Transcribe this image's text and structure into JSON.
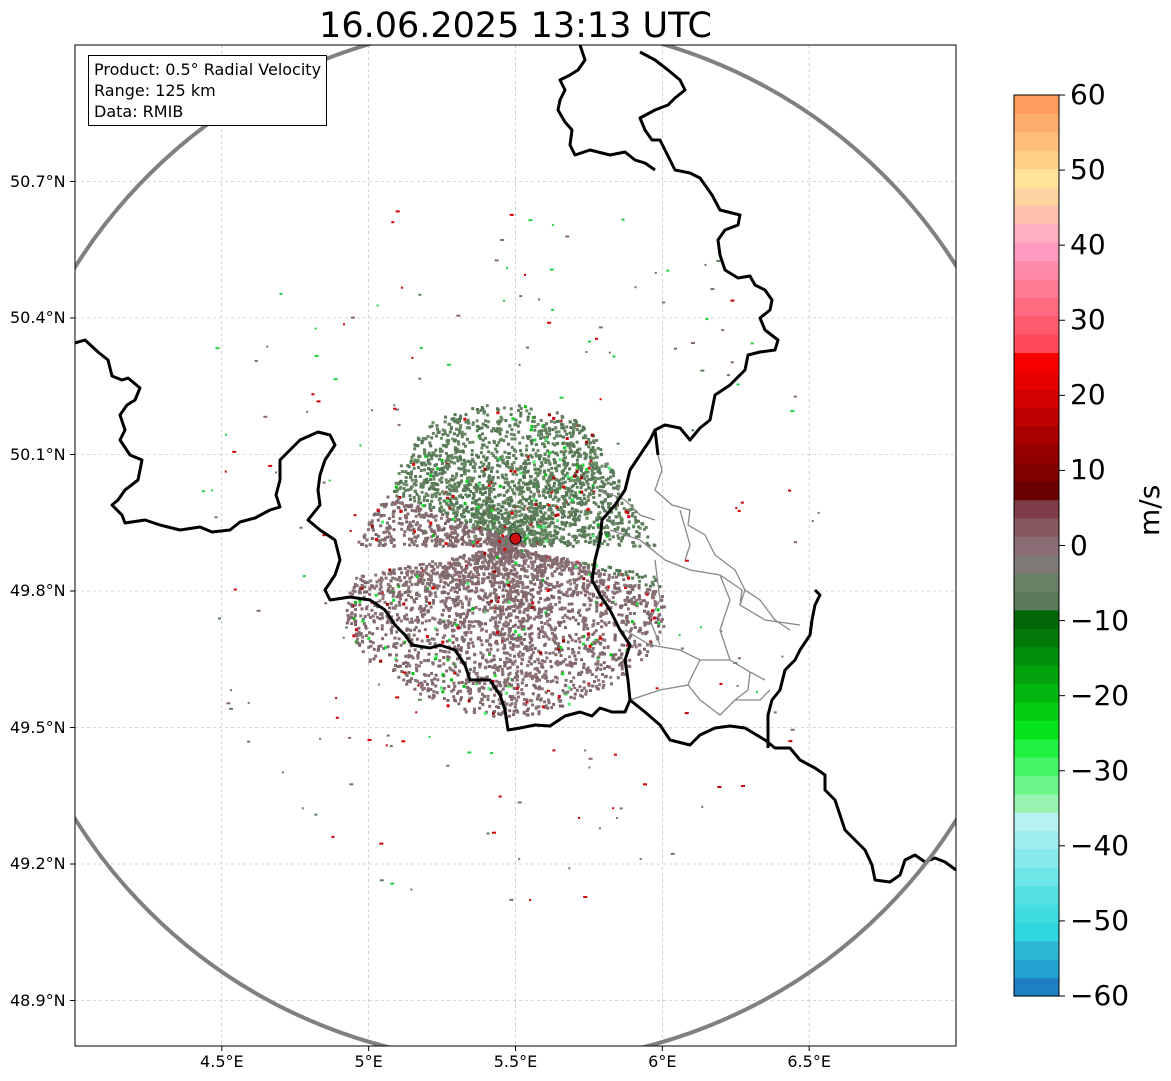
{
  "title": "16.06.2025 13:13 UTC",
  "info": {
    "product": "Product: 0.5° Radial Velocity",
    "range": "Range: 125 km",
    "data_source": "Data: RMIB"
  },
  "axes": {
    "lat_ticks": [
      "50.7°N",
      "50.4°N",
      "50.1°N",
      "49.8°N",
      "49.5°N",
      "49.2°N",
      "48.9°N"
    ],
    "lon_ticks": [
      "4.5°E",
      "5°E",
      "5.5°E",
      "6°E",
      "6.5°E"
    ],
    "lat_values": [
      50.7,
      50.4,
      50.1,
      49.8,
      49.5,
      49.2,
      48.9
    ],
    "lon_values": [
      4.5,
      5.0,
      5.5,
      6.0,
      6.5
    ],
    "lon_range": [
      4.0,
      7.0
    ],
    "lat_range": [
      48.8,
      51.0
    ],
    "grid": true
  },
  "radar": {
    "site_lon": 5.5,
    "site_lat": 49.915,
    "range_km": 125,
    "site_color": "#d01010",
    "range_ring_color": "#808080"
  },
  "colorbar": {
    "label": "m/s",
    "ticks": [
      "60",
      "50",
      "40",
      "30",
      "20",
      "10",
      "0",
      "−10",
      "−20",
      "−30",
      "−40",
      "−50",
      "−60"
    ],
    "tick_values": [
      60,
      50,
      40,
      30,
      20,
      10,
      0,
      -10,
      -20,
      -30,
      -40,
      -50,
      -60
    ],
    "min": -60,
    "max": 60,
    "colors_bottom_to_top": [
      "#1f7fc4",
      "#23a3cf",
      "#2ab8d4",
      "#2fd8de",
      "#3fdde0",
      "#55e0e2",
      "#6ee5e6",
      "#88e9ea",
      "#a0edee",
      "#b8f1f2",
      "#96f3b0",
      "#6cf58a",
      "#44f565",
      "#22f040",
      "#05e31a",
      "#03cc12",
      "#02b810",
      "#02a30d",
      "#018f0b",
      "#017a09",
      "#016607",
      "#5a7a5a",
      "#6a8066",
      "#7f7a76",
      "#8a6d74",
      "#86585f",
      "#7d3c46",
      "#6b0000",
      "#800000",
      "#940000",
      "#a80000",
      "#bd0000",
      "#d20000",
      "#e60000",
      "#f90000",
      "#ff4b5a",
      "#ff5a6e",
      "#ff6a80",
      "#ff7a94",
      "#ff8aa8",
      "#ff9ac0",
      "#ffb0c0",
      "#ffc0b0",
      "#ffd4a0",
      "#ffe49a",
      "#ffcf88",
      "#ffbe7a",
      "#ffad6c",
      "#ff9c5e"
    ]
  },
  "colors": {
    "border": "#000000",
    "admin_border": "#888888",
    "approaching": "#5e7e5c",
    "receding": "#85686f",
    "grid": "#b0b0b0"
  }
}
